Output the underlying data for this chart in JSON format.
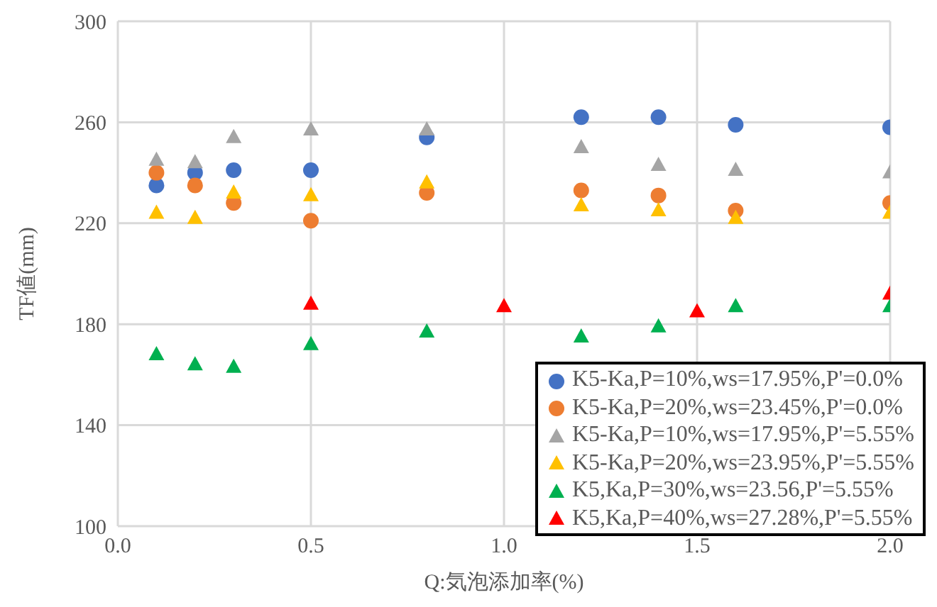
{
  "chart_data": {
    "type": "scatter",
    "xlabel": "Q:気泡添加率(%)",
    "ylabel": "TF値(mm)",
    "xlim": [
      0,
      2
    ],
    "xticks": [
      {
        "value": 0,
        "label": "0.0"
      },
      {
        "value": 0.5,
        "label": "0.5"
      },
      {
        "value": 1,
        "label": "1.0"
      },
      {
        "value": 1.5,
        "label": "1.5"
      },
      {
        "value": 2,
        "label": "2.0"
      }
    ],
    "ylim": [
      100,
      300
    ],
    "yticks": [
      100,
      140,
      180,
      220,
      260,
      300
    ],
    "grid": true,
    "legend": "bottom right",
    "series": [
      {
        "name": "K5-Ka,P=10%,ws=17.95%,P'=0.0%",
        "color": "#4472c4",
        "marker": "circle",
        "x": [
          0.1,
          0.2,
          0.3,
          0.5,
          0.8,
          1.2,
          1.4,
          1.6,
          2.0
        ],
        "values": [
          235,
          240,
          241,
          241,
          254,
          262,
          262,
          259,
          258
        ]
      },
      {
        "name": "K5-Ka,P=20%,ws=23.45%,P'=0.0%",
        "color": "#ed7d31",
        "marker": "circle",
        "x": [
          0.1,
          0.2,
          0.3,
          0.5,
          0.8,
          1.2,
          1.4,
          1.6,
          2.0
        ],
        "values": [
          240,
          235,
          228,
          221,
          232,
          233,
          231,
          225,
          228
        ]
      },
      {
        "name": "K5-Ka,P=10%,ws=17.95%,P'=5.55%",
        "color": "#a5a5a5",
        "marker": "triangle",
        "x": [
          0.1,
          0.2,
          0.3,
          0.5,
          0.8,
          1.2,
          1.4,
          1.6,
          2.0
        ],
        "values": [
          245,
          244,
          254,
          257,
          257,
          250,
          243,
          241,
          240
        ]
      },
      {
        "name": "K5-Ka,P=20%,ws=23.95%,P'=5.55%",
        "color": "#ffc000",
        "marker": "triangle",
        "x": [
          0.1,
          0.2,
          0.3,
          0.5,
          0.8,
          1.2,
          1.4,
          1.6,
          2.0
        ],
        "values": [
          224,
          222,
          232,
          231,
          236,
          227,
          225,
          222,
          224
        ]
      },
      {
        "name": "K5,Ka,P=30%,ws=23.56,P'=5.55%",
        "color": "#00b050",
        "marker": "triangle",
        "x": [
          0.1,
          0.2,
          0.3,
          0.5,
          0.8,
          1.2,
          1.4,
          1.6,
          2.0
        ],
        "values": [
          168,
          164,
          163,
          172,
          177,
          175,
          179,
          187,
          187
        ]
      },
      {
        "name": "K5,Ka,P=40%,ws=27.28%,P'=5.55%",
        "color": "#ff0000",
        "marker": "triangle",
        "x": [
          0.5,
          1.0,
          1.5,
          2.0
        ],
        "values": [
          188,
          187,
          185,
          192
        ]
      }
    ]
  }
}
